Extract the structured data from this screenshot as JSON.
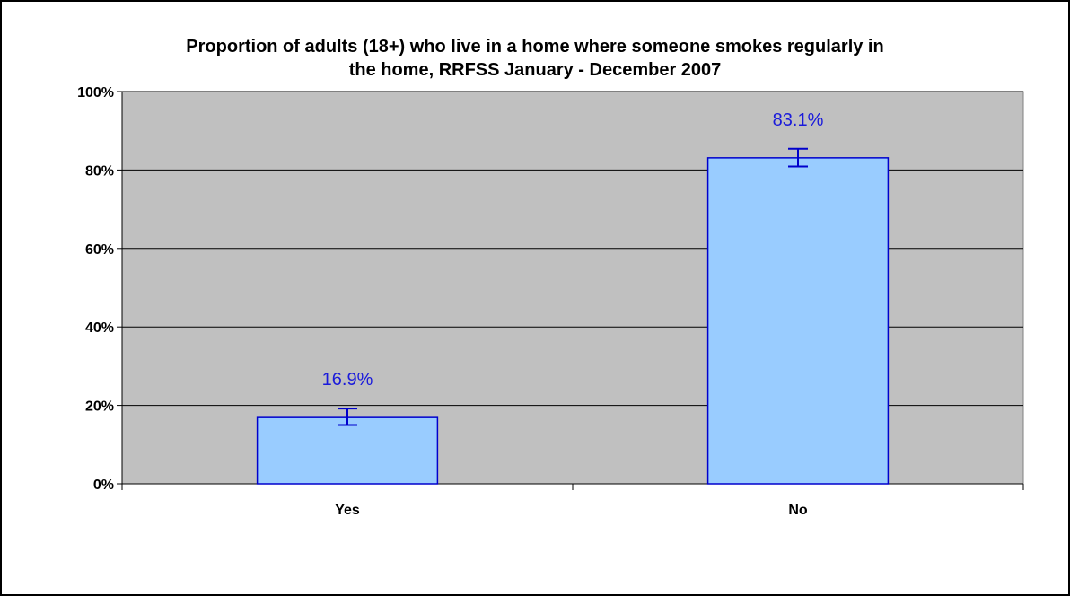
{
  "chart_data": {
    "type": "bar",
    "title": "Proportion of adults (18+) who live in a home where someone smokes regularly in the home, RRFSS January - December 2007",
    "title_lines": [
      "Proportion of adults (18+) who live in a home where someone smokes regularly in",
      "the home, RRFSS January - December 2007"
    ],
    "xlabel": "",
    "ylabel": "",
    "categories": [
      "Yes",
      "No"
    ],
    "values": [
      16.9,
      83.1
    ],
    "data_labels": [
      "16.9%",
      "83.1%"
    ],
    "error_bars": [
      {
        "low": 15.0,
        "high": 19.2
      },
      {
        "low": 80.9,
        "high": 85.4
      }
    ],
    "ylim": [
      0,
      100
    ],
    "yticks": [
      0,
      20,
      40,
      60,
      80,
      100
    ],
    "ytick_labels": [
      "0%",
      "20%",
      "40%",
      "60%",
      "80%",
      "100%"
    ],
    "grid": true,
    "legend": "none",
    "colors": {
      "plot_background": "#c0c0c0",
      "bar_fill": "#99ccff",
      "bar_stroke": "#0000cc",
      "data_label": "#1a1adb",
      "gridline": "#000000"
    }
  }
}
